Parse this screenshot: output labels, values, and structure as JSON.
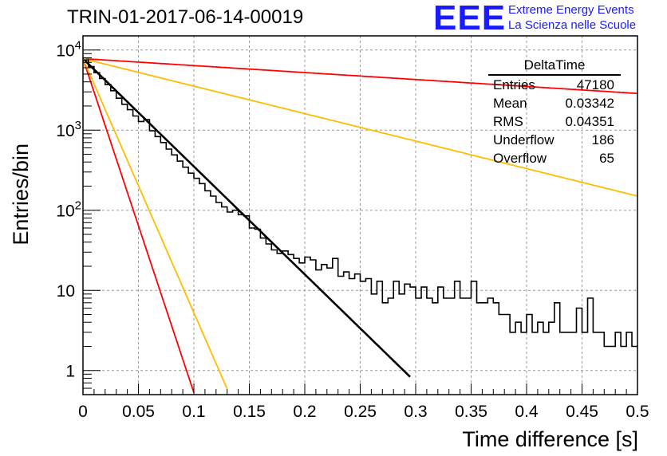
{
  "header": {
    "title": "TRIN-01-2017-06-14-00019",
    "logo": "EEE",
    "logo_line1": "Extreme Energy Events",
    "logo_line2": "La Scienza nelle Scuole"
  },
  "stats_box": {
    "name": "DeltaTime",
    "rows": [
      {
        "label": "Entries",
        "value": "47180"
      },
      {
        "label": "Mean",
        "value": "0.03342"
      },
      {
        "label": "RMS",
        "value": "0.04351"
      },
      {
        "label": "Underflow",
        "value": "186"
      },
      {
        "label": "Overflow",
        "value": "65"
      }
    ]
  },
  "chart_data": {
    "type": "line",
    "xlabel": "Time difference [s]",
    "ylabel": "Entries/bin",
    "xlim": [
      0,
      0.5
    ],
    "ylim": [
      0.5,
      15000
    ],
    "yscale": "log",
    "grid": true,
    "x_ticks": [
      "0",
      "0.05",
      "0.1",
      "0.15",
      "0.2",
      "0.25",
      "0.3",
      "0.35",
      "0.4",
      "0.45",
      "0.5"
    ],
    "y_ticks": [
      {
        "value": 1,
        "base": "1",
        "exp": ""
      },
      {
        "value": 10,
        "base": "10",
        "exp": ""
      },
      {
        "value": 100,
        "base": "10",
        "exp": "2"
      },
      {
        "value": 1000,
        "base": "10",
        "exp": "3"
      },
      {
        "value": 10000,
        "base": "10",
        "exp": "4"
      }
    ],
    "histogram": {
      "bin_width": 0.005,
      "values": [
        7500,
        6200,
        5200,
        4400,
        3700,
        3100,
        2500,
        2100,
        1800,
        1500,
        1280,
        1350,
        980,
        830,
        700,
        580,
        490,
        410,
        345,
        290,
        250,
        215,
        175,
        150,
        125,
        110,
        95,
        100,
        88,
        85,
        60,
        58,
        45,
        38,
        32,
        29,
        31,
        28,
        25,
        22,
        26,
        24,
        18,
        21,
        19,
        25,
        15,
        17,
        14,
        16,
        13,
        14,
        9,
        13,
        7,
        8,
        13,
        9,
        12,
        11,
        8,
        11,
        8,
        7,
        11,
        8,
        8,
        13,
        8,
        8,
        13,
        7,
        7,
        8,
        7,
        5,
        5,
        3,
        4,
        3,
        5,
        3,
        4,
        3,
        4,
        7,
        3,
        3,
        3,
        6,
        3,
        8,
        3,
        3,
        2,
        2,
        3,
        2,
        3,
        2
      ]
    },
    "series": [
      {
        "color": "#000000",
        "type": "exponential",
        "amplitude": 7800,
        "slope": -31.0,
        "x_end": 0.295
      },
      {
        "color": "#ff0000",
        "type": "exponential",
        "amplitude": 7800,
        "slope": -2.0,
        "x_end": 0.5
      },
      {
        "color": "#ffbb00",
        "type": "exponential",
        "amplitude": 7800,
        "slope": -7.9,
        "x_end": 0.5
      },
      {
        "color": "#ff0000",
        "type": "exponential",
        "amplitude": 7800,
        "slope": -96.0,
        "x_end": 0.1
      },
      {
        "color": "#ffbb00",
        "type": "exponential",
        "amplitude": 7800,
        "slope": -73.0,
        "x_end": 0.13
      }
    ]
  }
}
